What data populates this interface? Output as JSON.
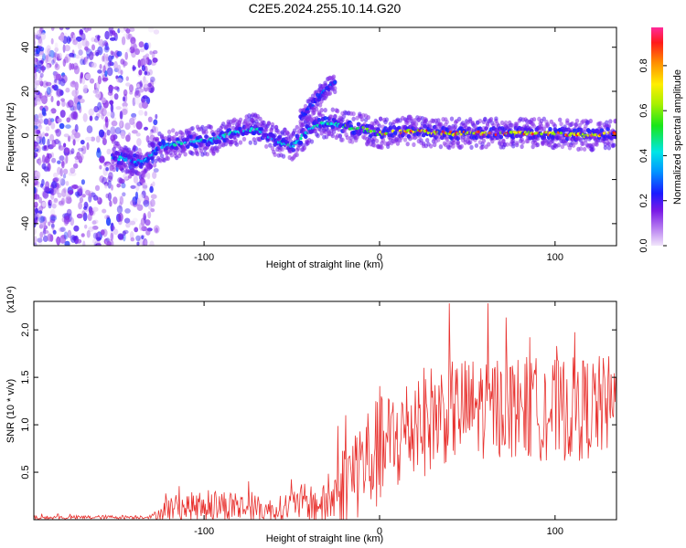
{
  "title": "C2E5.2024.255.10.14.G20",
  "colors": {
    "snr_line": "#e8322f",
    "axis": "#000000",
    "background": "#ffffff"
  },
  "chart_data": [
    {
      "type": "heatmap",
      "name": "spectrogram",
      "xlabel": "Height of straight line (km)",
      "ylabel": "Frequency (Hz)",
      "xlim": [
        -197,
        135
      ],
      "ylim": [
        -50,
        49
      ],
      "x_ticks": [
        -100,
        0,
        100
      ],
      "x_tick_labels": [
        "-100",
        "0",
        "100"
      ],
      "y_ticks": [
        -40,
        -20,
        0,
        20,
        40
      ],
      "y_tick_labels": [
        "-40",
        "-20",
        "0",
        "20",
        "40"
      ],
      "colorbar": {
        "label": "Normalized spectral amplitude",
        "range": [
          0,
          0.97
        ],
        "ticks": [
          0,
          0.2,
          0.4,
          0.6,
          0.8
        ],
        "tick_labels": [
          "0.0",
          "0.2",
          "0.4",
          "0.6",
          "0.8"
        ]
      },
      "signal_track": [
        {
          "x": -150,
          "f": -10
        },
        {
          "x": -135,
          "f": -12
        },
        {
          "x": -125,
          "f": -5
        },
        {
          "x": -110,
          "f": -3
        },
        {
          "x": -95,
          "f": -2
        },
        {
          "x": -80,
          "f": 2
        },
        {
          "x": -70,
          "f": 3
        },
        {
          "x": -60,
          "f": -2
        },
        {
          "x": -50,
          "f": -5
        },
        {
          "x": -40,
          "f": 3
        },
        {
          "x": -30,
          "f": 6
        },
        {
          "x": -20,
          "f": 4
        },
        {
          "x": -10,
          "f": 3
        },
        {
          "x": 0,
          "f": 1
        },
        {
          "x": 20,
          "f": 2
        },
        {
          "x": 40,
          "f": 1
        },
        {
          "x": 60,
          "f": 1
        },
        {
          "x": 80,
          "f": 1
        },
        {
          "x": 100,
          "f": 1
        },
        {
          "x": 120,
          "f": 0
        },
        {
          "x": 135,
          "f": 1
        }
      ],
      "branch_track": [
        {
          "x": -45,
          "f": 8
        },
        {
          "x": -38,
          "f": 14
        },
        {
          "x": -32,
          "f": 20
        },
        {
          "x": -25,
          "f": 24
        }
      ]
    },
    {
      "type": "line",
      "name": "snr",
      "xlabel": "Height of straight line (km)",
      "ylabel": "SNR (10 * v/v)",
      "y_scale_label": "(x10⁴)",
      "xlim": [
        -197,
        135
      ],
      "ylim": [
        0,
        2.3
      ],
      "x_ticks": [
        -100,
        0,
        100
      ],
      "x_tick_labels": [
        "-100",
        "0",
        "100"
      ],
      "y_ticks": [
        0.5,
        1.0,
        1.5,
        2.0
      ],
      "y_tick_labels": [
        "0.5",
        "1.0",
        "1.5",
        "2.0"
      ],
      "envelope": [
        {
          "x": -197,
          "mean": 0.02,
          "spread": 0.02
        },
        {
          "x": -130,
          "mean": 0.03,
          "spread": 0.02
        },
        {
          "x": -120,
          "mean": 0.12,
          "spread": 0.14
        },
        {
          "x": -90,
          "mean": 0.15,
          "spread": 0.18
        },
        {
          "x": -60,
          "mean": 0.1,
          "spread": 0.12
        },
        {
          "x": -45,
          "mean": 0.18,
          "spread": 0.2
        },
        {
          "x": -30,
          "mean": 0.15,
          "spread": 0.22
        },
        {
          "x": -20,
          "mean": 0.4,
          "spread": 0.45
        },
        {
          "x": -10,
          "mean": 0.6,
          "spread": 0.6
        },
        {
          "x": 0,
          "mean": 0.7,
          "spread": 0.6
        },
        {
          "x": 20,
          "mean": 1.0,
          "spread": 0.6
        },
        {
          "x": 40,
          "mean": 1.15,
          "spread": 0.55
        },
        {
          "x": 70,
          "mean": 1.2,
          "spread": 0.55
        },
        {
          "x": 100,
          "mean": 1.15,
          "spread": 0.55
        },
        {
          "x": 135,
          "mean": 1.2,
          "spread": 0.55
        }
      ]
    }
  ]
}
